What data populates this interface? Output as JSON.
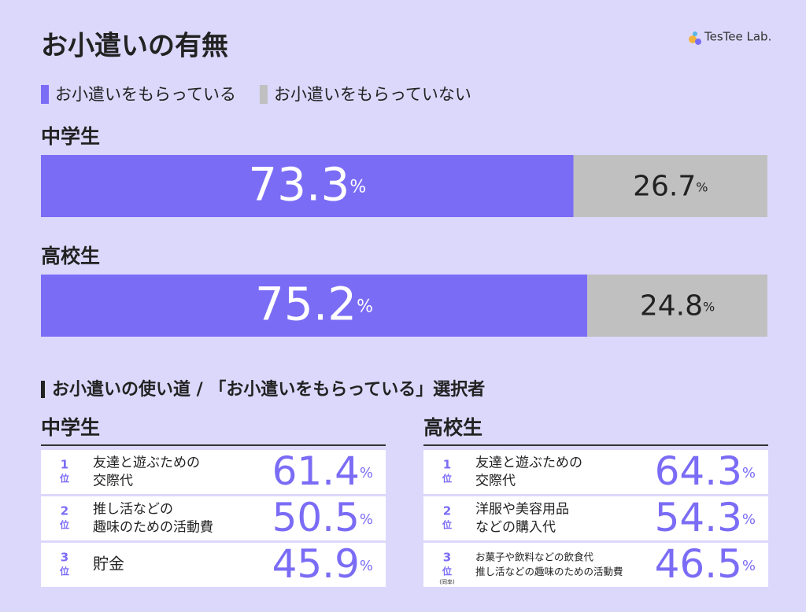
{
  "title": "お小遣いの有無",
  "brand": "TesTee Lab.",
  "unit": "%",
  "chart_data": {
    "type": "bar",
    "orientation": "horizontal",
    "stacked": true,
    "categories": [
      "中学生",
      "高校生"
    ],
    "series": [
      {
        "name": "お小遣いをもらっている",
        "color": "#7b6cf6",
        "values": [
          73.3,
          75.2
        ]
      },
      {
        "name": "お小遣いをもらっていない",
        "color": "#c0c0c0",
        "values": [
          26.7,
          24.8
        ]
      }
    ],
    "xlim": [
      0,
      100
    ]
  },
  "ranking": {
    "title": "お小遣いの使い道 / 「お小遣いをもらっている」選択者",
    "rank_suffix": "位",
    "groups": [
      {
        "name": "中学生",
        "items": [
          {
            "rank": 1,
            "label": [
              "友達と遊ぶための",
              "交際代"
            ],
            "value": 61.4
          },
          {
            "rank": 2,
            "label": [
              "推し活などの",
              "趣味のための活動費"
            ],
            "value": 50.5
          },
          {
            "rank": 3,
            "label": [
              "貯金"
            ],
            "value": 45.9
          }
        ]
      },
      {
        "name": "高校生",
        "items": [
          {
            "rank": 1,
            "label": [
              "友達と遊ぶための",
              "交際代"
            ],
            "value": 64.3
          },
          {
            "rank": 2,
            "label": [
              "洋服や美容用品",
              "などの購入代"
            ],
            "value": 54.3
          },
          {
            "rank": 3,
            "note": "(同率)",
            "label": [
              "お菓子や飲料などの飲食代",
              "推し活などの趣味のための活動費"
            ],
            "value": 46.5
          }
        ]
      }
    ]
  }
}
